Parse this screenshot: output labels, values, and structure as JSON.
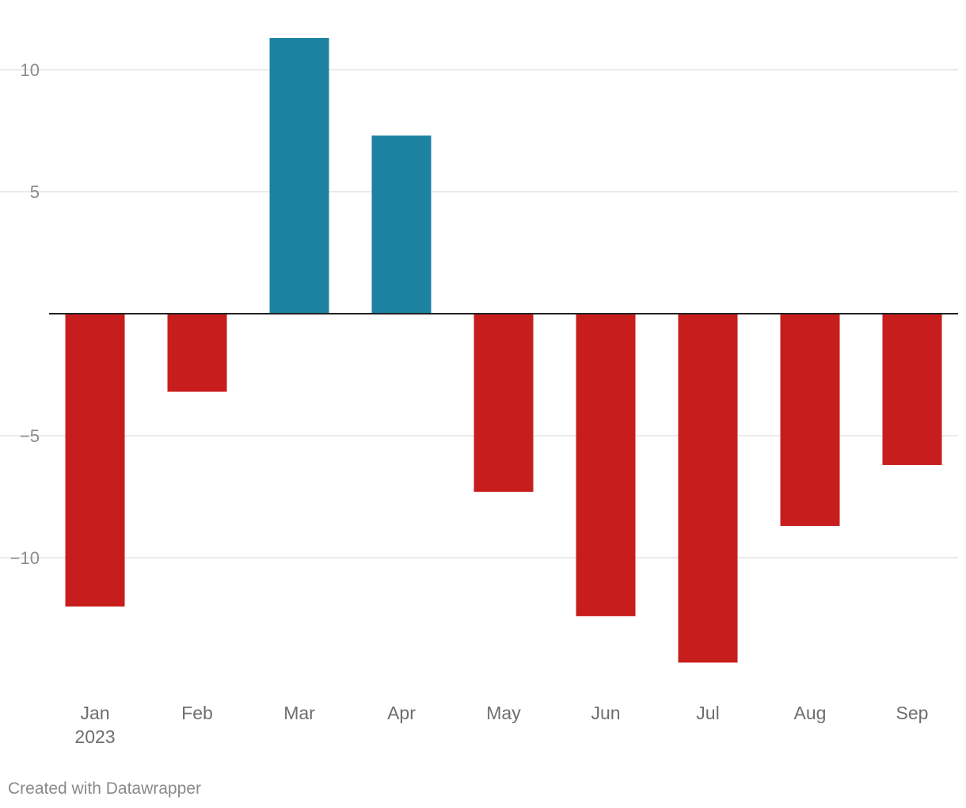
{
  "chart_data": {
    "type": "bar",
    "categories": [
      "Jan",
      "Feb",
      "Mar",
      "Apr",
      "May",
      "Jun",
      "Jul",
      "Aug",
      "Sep"
    ],
    "category_sublabels": [
      "2023",
      "",
      "",
      "",
      "",
      "",
      "",
      "",
      ""
    ],
    "values": [
      -12.0,
      -3.2,
      11.3,
      7.3,
      -7.3,
      -12.4,
      -14.3,
      -8.7,
      -6.2
    ],
    "yticks": [
      10,
      5,
      -5,
      -10
    ],
    "ytick_labels": [
      "10",
      "5",
      "−5",
      "−10"
    ],
    "ylim": [
      -14.3,
      11.3
    ],
    "grid": true,
    "title": "",
    "xlabel": "",
    "ylabel": "",
    "colors": {
      "positive": "#1d81a2",
      "negative": "#c71e1d",
      "gridline": "#e3e3e3",
      "baseline": "#222222"
    }
  },
  "footer": {
    "credit": "Created with Datawrapper"
  }
}
